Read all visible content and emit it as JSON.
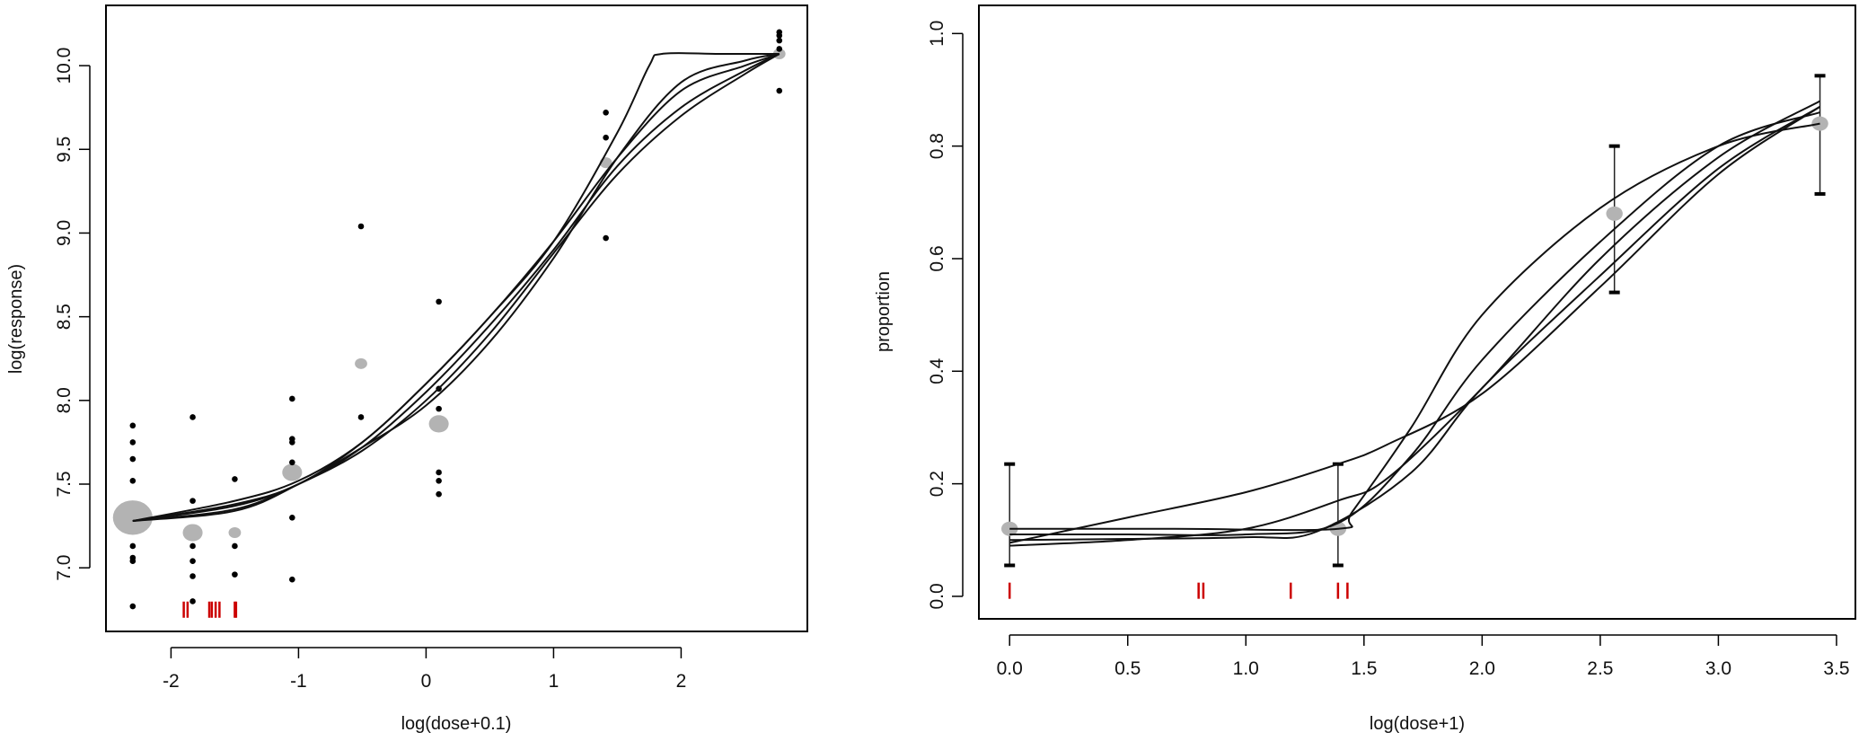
{
  "colors": {
    "mean_point": "#b3b3b3",
    "obs_point": "#000000",
    "curve": "#111111",
    "rug": "#cc0000",
    "axis": "#000000"
  },
  "chart_data": [
    {
      "type": "scatter",
      "title": "",
      "xlabel": "log(dose+0.1)",
      "ylabel": "log(response)",
      "xlim": [
        -2.51,
        2.99
      ],
      "ylim": [
        6.62,
        10.36
      ],
      "xticks": [
        -2,
        -1,
        0,
        1,
        2
      ],
      "xtick_labels": [
        "-2",
        "-1",
        "0",
        "1",
        "2"
      ],
      "yticks": [
        7.0,
        7.5,
        8.0,
        8.5,
        9.0,
        9.5,
        10.0
      ],
      "ytick_labels": [
        "7.0",
        "7.5",
        "8.0",
        "8.5",
        "9.0",
        "9.5",
        "10.0"
      ],
      "grid": false,
      "means": [
        {
          "x": -2.3,
          "y": 7.3,
          "size": 3.2
        },
        {
          "x": -1.83,
          "y": 7.21,
          "size": 1.6
        },
        {
          "x": -1.5,
          "y": 7.21,
          "size": 1.0
        },
        {
          "x": -1.05,
          "y": 7.57,
          "size": 1.6
        },
        {
          "x": -0.51,
          "y": 8.22,
          "size": 1.0
        },
        {
          "x": 0.1,
          "y": 7.86,
          "size": 1.6
        },
        {
          "x": 1.41,
          "y": 9.42,
          "size": 1.0
        },
        {
          "x": 2.77,
          "y": 10.07,
          "size": 1.0
        }
      ],
      "observations": [
        {
          "x": -2.3,
          "y": [
            7.85,
            7.75,
            7.65,
            7.52,
            7.13,
            7.06,
            7.04,
            6.77
          ]
        },
        {
          "x": -1.83,
          "y": [
            7.9,
            7.4,
            7.13,
            7.04,
            6.95,
            6.8
          ]
        },
        {
          "x": -1.5,
          "y": [
            7.53,
            7.13,
            6.96
          ]
        },
        {
          "x": -1.05,
          "y": [
            8.01,
            7.77,
            7.75,
            7.63,
            7.3,
            6.93
          ]
        },
        {
          "x": -0.51,
          "y": [
            9.04,
            7.9
          ]
        },
        {
          "x": 0.1,
          "y": [
            8.59,
            8.07,
            7.95,
            7.57,
            7.52,
            7.44
          ]
        },
        {
          "x": 1.41,
          "y": [
            9.72,
            9.57,
            8.97
          ]
        },
        {
          "x": 2.77,
          "y": [
            10.2,
            10.18,
            10.15,
            10.1,
            9.85
          ]
        }
      ],
      "curves": [
        {
          "x": [
            -2.3,
            -1.5,
            -1,
            -0.5,
            0,
            0.5,
            1,
            1.5,
            2,
            2.5,
            2.77
          ],
          "y": [
            7.28,
            7.4,
            7.52,
            7.75,
            8.1,
            8.5,
            8.95,
            9.45,
            9.85,
            10.0,
            10.07
          ]
        },
        {
          "x": [
            -2.3,
            -1.5,
            -1,
            -0.5,
            0,
            0.5,
            1,
            1.5,
            2,
            2.5,
            2.77
          ],
          "y": [
            7.28,
            7.37,
            7.5,
            7.72,
            8.05,
            8.45,
            8.9,
            9.4,
            9.75,
            9.97,
            10.07
          ]
        },
        {
          "x": [
            -2.3,
            -1.5,
            -1,
            -0.5,
            0,
            0.5,
            1,
            1.5,
            2,
            2.5,
            2.77
          ],
          "y": [
            7.28,
            7.35,
            7.5,
            7.7,
            8.0,
            8.4,
            8.88,
            9.35,
            9.7,
            9.95,
            10.07
          ]
        },
        {
          "x": [
            -2.3,
            -1.5,
            -1,
            -0.5,
            0,
            0.5,
            1,
            1.5,
            2,
            2.5,
            2.77
          ],
          "y": [
            7.28,
            7.34,
            7.5,
            7.72,
            7.97,
            8.35,
            8.85,
            9.45,
            9.9,
            10.03,
            10.07
          ]
        },
        {
          "x": [
            -2.3,
            -1.5,
            -1,
            -0.5,
            0,
            0.5,
            1,
            1.5,
            1.75,
            1.85,
            2.3,
            2.77
          ],
          "y": [
            7.28,
            7.38,
            7.5,
            7.75,
            8.1,
            8.5,
            8.95,
            9.6,
            10.0,
            10.07,
            10.07,
            10.07
          ]
        }
      ],
      "rug": {
        "y": 6.75,
        "x": [
          -1.9,
          -1.87,
          -1.7,
          -1.68,
          -1.65,
          -1.62,
          -1.5,
          -1.49
        ]
      }
    },
    {
      "type": "scatter",
      "title": "",
      "xlabel": "log(dose+1)",
      "ylabel": "proportion",
      "xlim": [
        -0.13,
        3.58
      ],
      "ylim": [
        -0.04,
        1.05
      ],
      "xticks": [
        0,
        0.5,
        1,
        1.5,
        2,
        2.5,
        3,
        3.5
      ],
      "xtick_labels": [
        "0.0",
        "0.5",
        "1.0",
        "1.5",
        "2.0",
        "2.5",
        "3.0",
        "3.5"
      ],
      "yticks": [
        0,
        0.2,
        0.4,
        0.6,
        0.8,
        1.0
      ],
      "ytick_labels": [
        "0.0",
        "0.2",
        "0.4",
        "0.6",
        "0.8",
        "1.0"
      ],
      "grid": false,
      "means": [
        {
          "x": 0,
          "y": 0.12,
          "lo": 0.055,
          "hi": 0.235
        },
        {
          "x": 1.39,
          "y": 0.12,
          "lo": 0.055,
          "hi": 0.235
        },
        {
          "x": 2.56,
          "y": 0.68,
          "lo": 0.54,
          "hi": 0.8
        },
        {
          "x": 3.43,
          "y": 0.84,
          "lo": 0.715,
          "hi": 0.925
        }
      ],
      "curves": [
        {
          "x": [
            0,
            0.5,
            1,
            1.39,
            1.6,
            2,
            2.5,
            3,
            3.43
          ],
          "y": [
            0.095,
            0.14,
            0.185,
            0.235,
            0.27,
            0.36,
            0.55,
            0.75,
            0.87
          ]
        },
        {
          "x": [
            0,
            0.5,
            1,
            1.39,
            1.6,
            2,
            2.5,
            3,
            3.43
          ],
          "y": [
            0.09,
            0.1,
            0.12,
            0.17,
            0.21,
            0.37,
            0.6,
            0.78,
            0.88
          ]
        },
        {
          "x": [
            0,
            0.7,
            1.39,
            1.45,
            1.7,
            2,
            2.5,
            3,
            3.43
          ],
          "y": [
            0.12,
            0.12,
            0.12,
            0.15,
            0.3,
            0.5,
            0.69,
            0.8,
            0.84
          ]
        },
        {
          "x": [
            0,
            0.5,
            1,
            1.39,
            1.7,
            2,
            2.5,
            3,
            3.43
          ],
          "y": [
            0.11,
            0.11,
            0.11,
            0.13,
            0.25,
            0.42,
            0.63,
            0.8,
            0.86
          ]
        },
        {
          "x": [
            0,
            0.5,
            1,
            1.3,
            1.7,
            2,
            2.5,
            3,
            3.43
          ],
          "y": [
            0.1,
            0.102,
            0.105,
            0.115,
            0.22,
            0.37,
            0.57,
            0.76,
            0.87
          ]
        }
      ],
      "rug": {
        "y": 0.01,
        "x": [
          0,
          0.8,
          0.82,
          1.19,
          1.39,
          1.43
        ]
      }
    }
  ]
}
